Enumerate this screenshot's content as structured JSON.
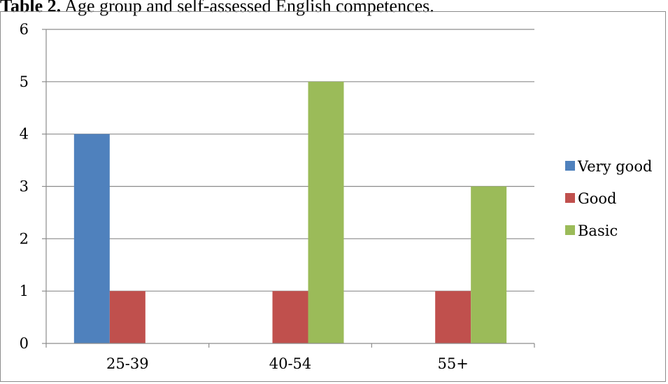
{
  "caption": {
    "label": "Table 2.",
    "text": " Age group and self-assessed English competences."
  },
  "chart_data": {
    "type": "bar",
    "categories": [
      "25-39",
      "40-54",
      "55+"
    ],
    "series": [
      {
        "name": "Very good",
        "values": [
          4,
          0,
          0
        ],
        "color": "#4f81bd"
      },
      {
        "name": "Good",
        "values": [
          1,
          1,
          1
        ],
        "color": "#c0504d"
      },
      {
        "name": "Basic",
        "values": [
          0,
          5,
          3
        ],
        "color": "#9bbb59"
      }
    ],
    "ylim": [
      0,
      6
    ],
    "yticks": [
      0,
      1,
      2,
      3,
      4,
      5,
      6
    ],
    "grid": true,
    "legend": "right",
    "title": "",
    "xlabel": "",
    "ylabel": ""
  }
}
